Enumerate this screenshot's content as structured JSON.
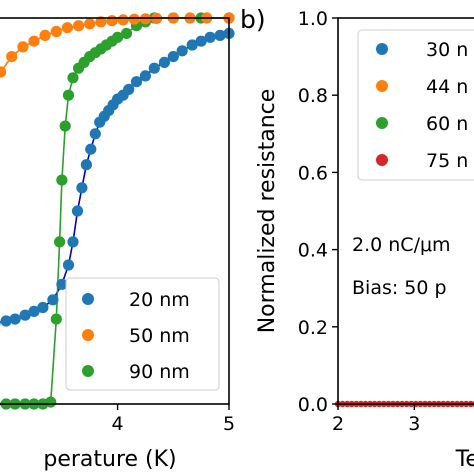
{
  "chart_data": [
    {
      "type": "line",
      "panel": "",
      "xlabel": "perature (K)",
      "ylabel": "",
      "xlim": [
        2.9,
        5.0
      ],
      "ylim": [
        0.0,
        1.0
      ],
      "xticks": [
        {
          "v": 4,
          "label": "4"
        },
        {
          "v": 5,
          "label": "5"
        }
      ],
      "legend_position": "lower-right",
      "series": [
        {
          "name": "20 nm",
          "color": "#1f77b4",
          "line_color": "#0000cc",
          "x": [
            2.9,
            3.0,
            3.08,
            3.17,
            3.25,
            3.33,
            3.42,
            3.5,
            3.56,
            3.6,
            3.64,
            3.68,
            3.72,
            3.76,
            3.8,
            3.84,
            3.88,
            3.92,
            3.96,
            4.0,
            4.05,
            4.1,
            4.17,
            4.25,
            4.33,
            4.42,
            4.5,
            4.58,
            4.67,
            4.75,
            4.83,
            4.92,
            5.0
          ],
          "y": [
            0.21,
            0.215,
            0.22,
            0.23,
            0.24,
            0.25,
            0.27,
            0.31,
            0.36,
            0.42,
            0.5,
            0.56,
            0.62,
            0.66,
            0.7,
            0.73,
            0.745,
            0.76,
            0.775,
            0.79,
            0.8,
            0.815,
            0.835,
            0.85,
            0.87,
            0.885,
            0.9,
            0.915,
            0.93,
            0.94,
            0.95,
            0.955,
            0.96
          ]
        },
        {
          "name": "50 nm",
          "color": "#ff7f0e",
          "line_color": "#ff7f0e",
          "x": [
            2.95,
            3.05,
            3.15,
            3.25,
            3.35,
            3.45,
            3.55,
            3.65,
            3.75,
            3.85,
            3.95,
            4.05,
            4.15,
            4.25,
            4.35,
            4.5,
            4.65,
            4.8,
            5.0
          ],
          "y": [
            0.86,
            0.9,
            0.925,
            0.94,
            0.955,
            0.965,
            0.975,
            0.98,
            0.985,
            0.99,
            0.993,
            0.995,
            0.997,
            0.998,
            0.999,
            1.0,
            1.0,
            1.0,
            1.0
          ]
        },
        {
          "name": "90 nm",
          "color": "#2ca02c",
          "line_color": "#2ca02c",
          "x": [
            2.9,
            3.0,
            3.08,
            3.17,
            3.25,
            3.33,
            3.4,
            3.45,
            3.48,
            3.5,
            3.53,
            3.56,
            3.6,
            3.65,
            3.7,
            3.75,
            3.8,
            3.85,
            3.9,
            3.95,
            4.0,
            4.08,
            4.17,
            4.25,
            4.33,
            4.5,
            4.75,
            5.0
          ],
          "y": [
            0.0,
            0.0,
            0.0,
            0.0,
            0.0,
            0.0,
            0.005,
            0.22,
            0.42,
            0.58,
            0.72,
            0.8,
            0.845,
            0.87,
            0.885,
            0.9,
            0.91,
            0.92,
            0.93,
            0.94,
            0.95,
            0.96,
            0.98,
            0.99,
            1.0,
            1.0,
            1.0,
            1.0
          ]
        }
      ]
    },
    {
      "type": "scatter",
      "panel": "b)",
      "xlabel": "Tem",
      "ylabel": "Normalized resistance",
      "xlim": [
        2.0,
        3.9
      ],
      "ylim": [
        0.0,
        1.0
      ],
      "xticks": [
        {
          "v": 2,
          "label": "2"
        },
        {
          "v": 3,
          "label": "3"
        }
      ],
      "yticks": [
        {
          "v": 0.0,
          "label": "0.0"
        },
        {
          "v": 0.2,
          "label": "0.2"
        },
        {
          "v": 0.4,
          "label": "0.4"
        },
        {
          "v": 0.6,
          "label": "0.6"
        },
        {
          "v": 0.8,
          "label": "0.8"
        },
        {
          "v": 1.0,
          "label": "1.0"
        }
      ],
      "legend_position": "upper-right",
      "annotations": [
        "2.0 nC/μm",
        "Bias: 50 p"
      ],
      "series": [
        {
          "name": "30 n",
          "color": "#1f77b4",
          "x": [],
          "y": []
        },
        {
          "name": "44 n",
          "color": "#ff7f0e",
          "x": [],
          "y": []
        },
        {
          "name": "60 n",
          "color": "#2ca02c",
          "x": [],
          "y": []
        },
        {
          "name": "75 n",
          "color": "#d62728",
          "x": [
            2.0,
            2.06,
            2.12,
            2.18,
            2.24,
            2.3,
            2.36,
            2.42,
            2.48,
            2.54,
            2.6,
            2.66,
            2.72,
            2.78,
            2.84,
            2.9,
            2.96,
            3.02,
            3.08,
            3.14,
            3.2,
            3.26,
            3.32,
            3.38,
            3.44,
            3.5,
            3.56,
            3.62,
            3.68,
            3.74,
            3.8,
            3.86
          ],
          "y": [
            0,
            0,
            0,
            0,
            0,
            0,
            0,
            0,
            0,
            0,
            0,
            0,
            0,
            0,
            0,
            0,
            0,
            0,
            0,
            0,
            0,
            0,
            0,
            0,
            0,
            0,
            0,
            0,
            0,
            0,
            0,
            0
          ]
        }
      ]
    }
  ]
}
